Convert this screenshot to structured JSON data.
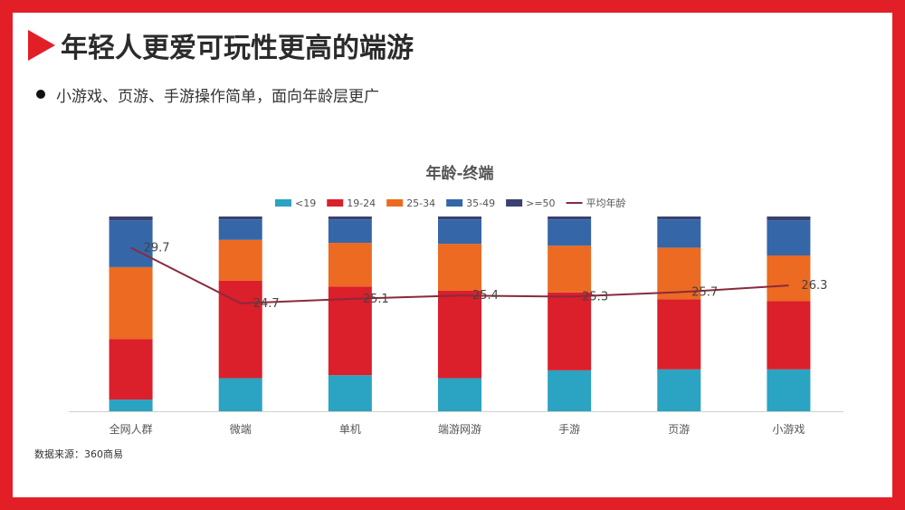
{
  "slide": {
    "title": "年轻人更爱可玩性更高的端游",
    "bullet": "小游戏、页游、手游操作简单，面向年龄层更广",
    "source": "数据来源：360商易"
  },
  "colors": {
    "frame": "#e21f26",
    "lt19": "#2ba3c2",
    "a19_24": "#db1f2b",
    "a25_34": "#ec6a22",
    "a35_49": "#3567a8",
    "ge50": "#3a4170",
    "avg_line": "#8a2a3e"
  },
  "chart_data": {
    "type": "bar",
    "stacked": true,
    "title": "年龄-终端",
    "categories": [
      "全网人群",
      "微端",
      "单机",
      "端游网游",
      "手游",
      "页游",
      "小游戏"
    ],
    "series": [
      {
        "name": "<19",
        "color": "#2ba3c2",
        "values": [
          6,
          17,
          18.5,
          17,
          21,
          21.5,
          21.5
        ]
      },
      {
        "name": "19-24",
        "color": "#db1f2b",
        "values": [
          31,
          50,
          45.5,
          45,
          40,
          36,
          35
        ]
      },
      {
        "name": "25-34",
        "color": "#ec6a22",
        "values": [
          37,
          21,
          22.5,
          24,
          24,
          26.5,
          23.5
        ]
      },
      {
        "name": "35-49",
        "color": "#3567a8",
        "values": [
          24,
          10.5,
          12,
          12.5,
          13.5,
          14.5,
          18
        ]
      },
      {
        "name": ">=50",
        "color": "#3a4170",
        "values": [
          2,
          1.5,
          1.5,
          1.5,
          1.5,
          1.5,
          2
        ]
      }
    ],
    "line": {
      "name": "平均年龄",
      "color": "#8a2a3e",
      "values": [
        29.7,
        24.7,
        25.1,
        25.4,
        25.3,
        25.7,
        26.3
      ],
      "labels": [
        "29.7",
        "24.7",
        "25.1",
        "25.4",
        "25.3",
        "25.7",
        "26.3"
      ]
    },
    "ylim": [
      0,
      100
    ],
    "line_ylim": [
      15,
      32.5
    ],
    "legend_position": "top",
    "grid": false
  }
}
